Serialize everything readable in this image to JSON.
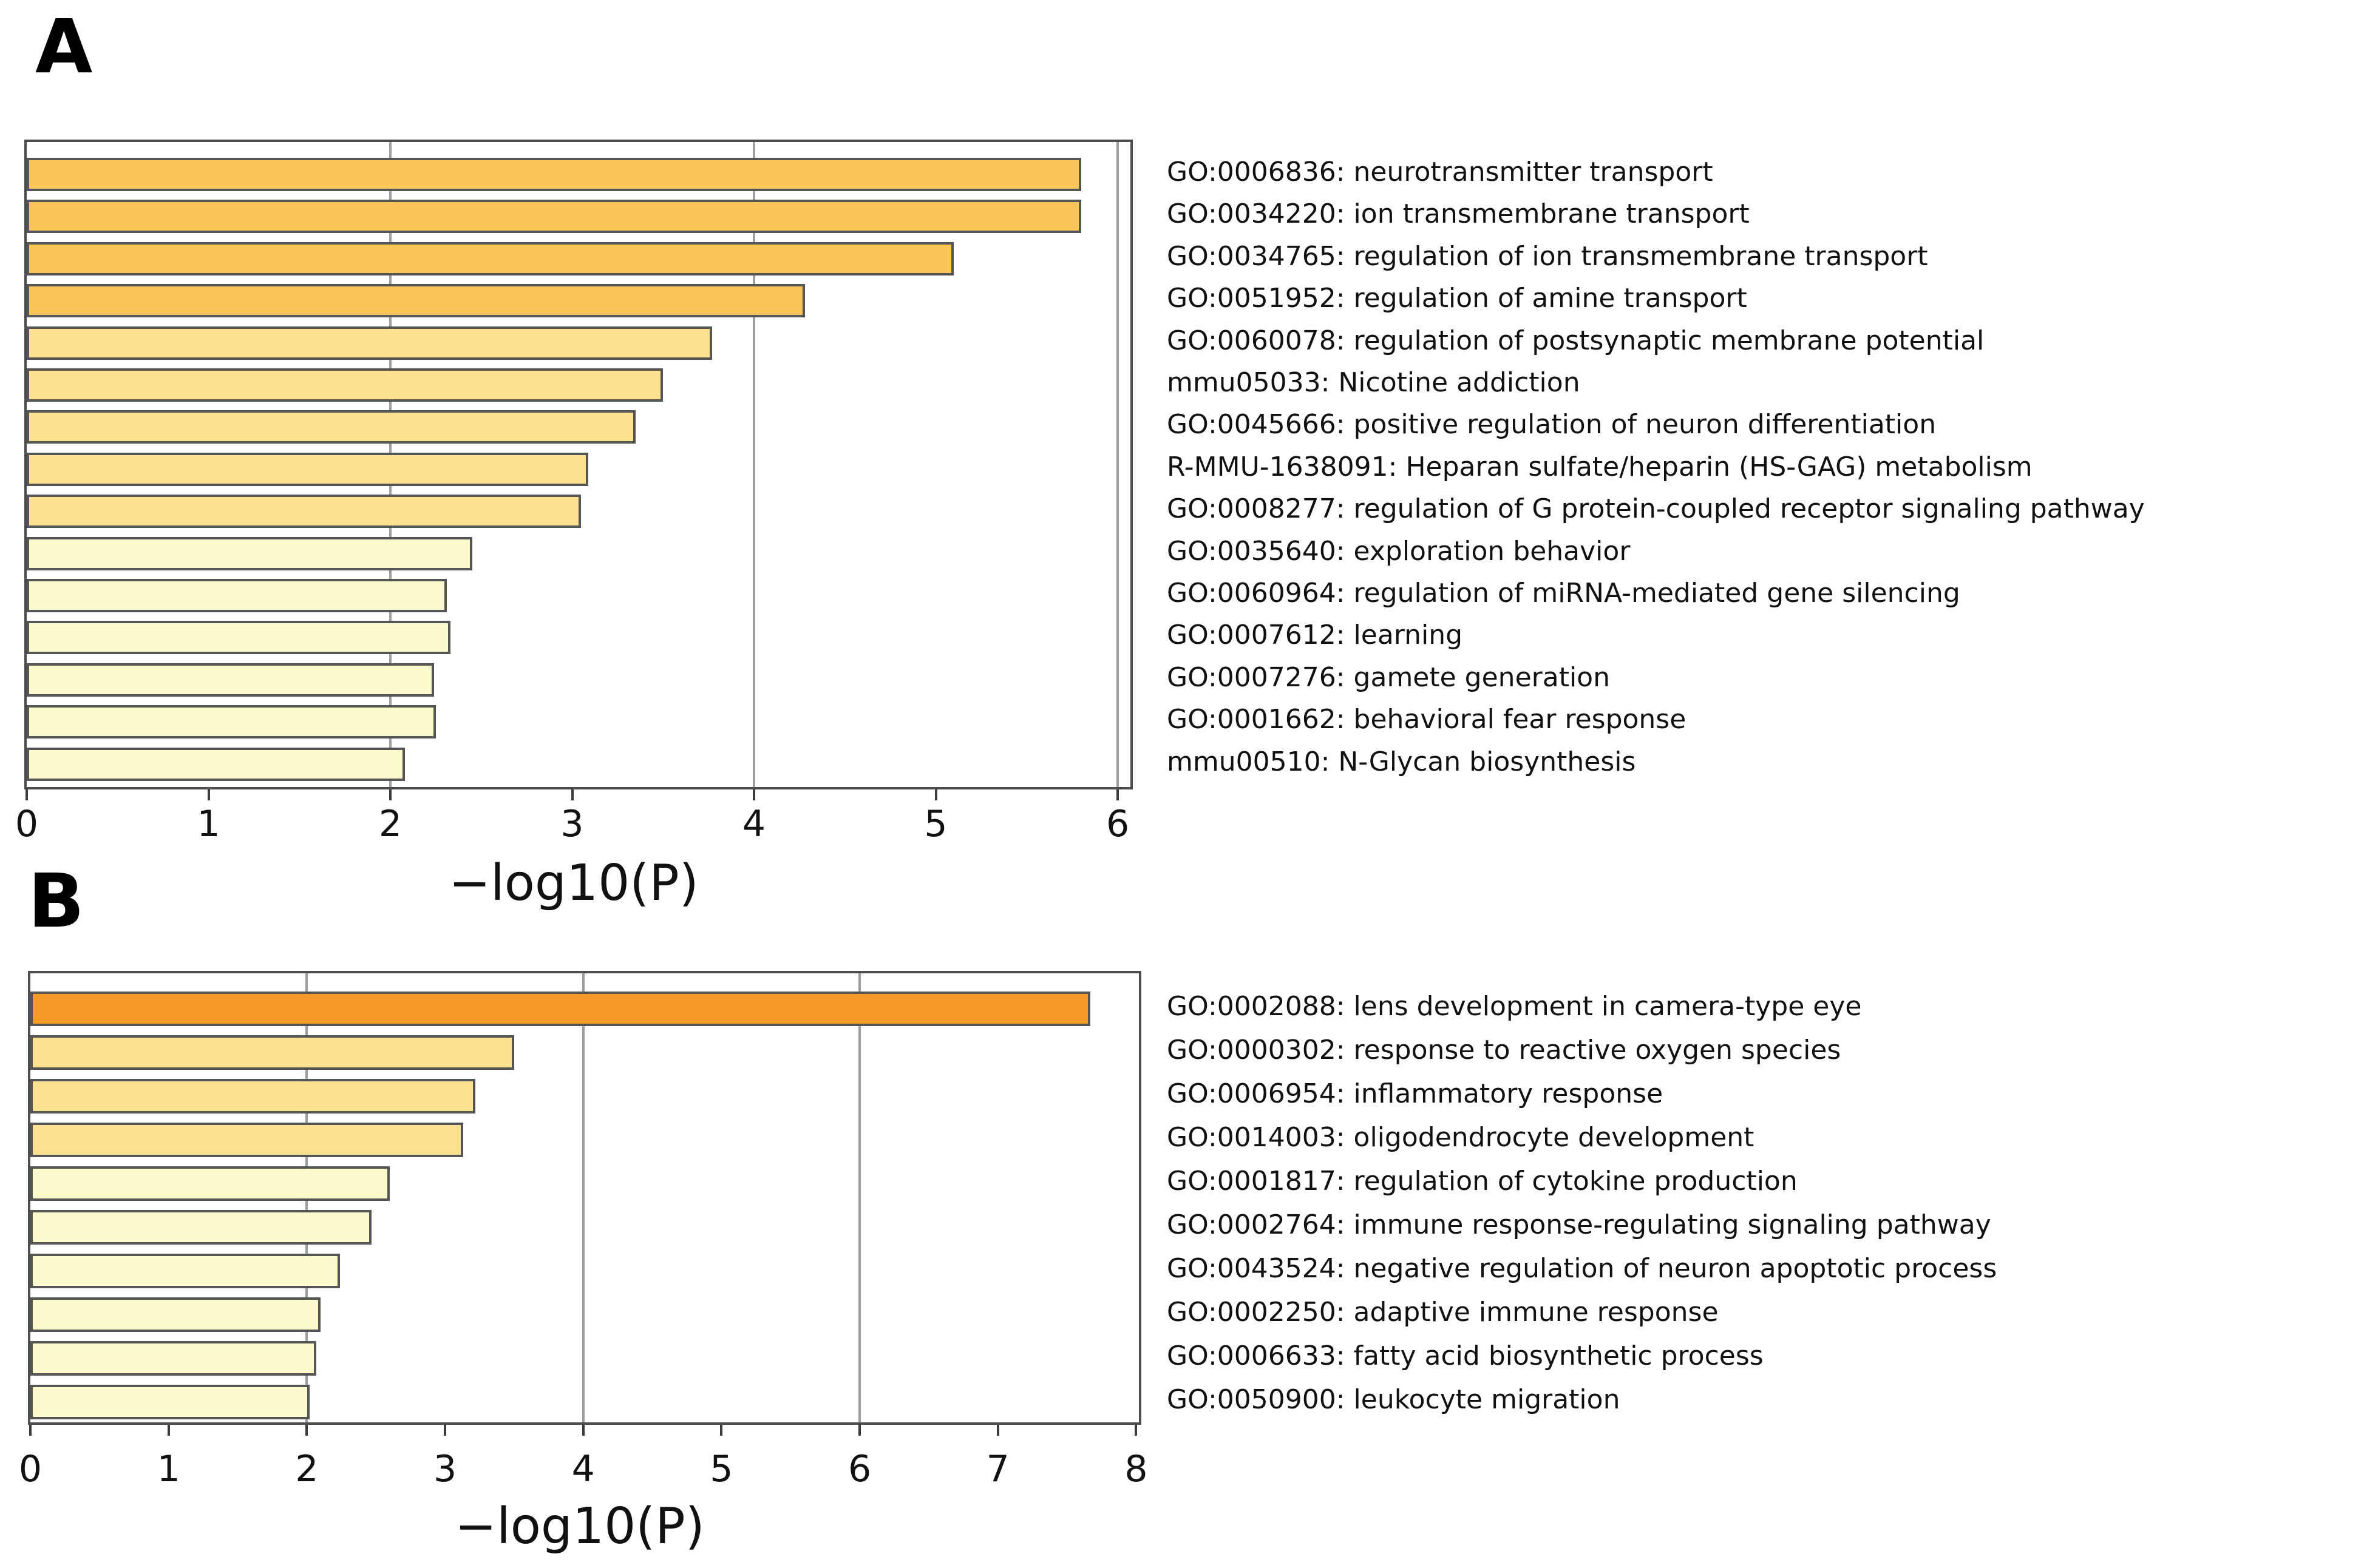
{
  "chart_data": [
    {
      "panel": "A",
      "type": "bar",
      "orientation": "horizontal",
      "title": "",
      "xlabel": "−log10(P)",
      "ylabel": "",
      "xlim": [
        0,
        6.07
      ],
      "xticks": [
        0,
        1,
        2,
        3,
        4,
        5,
        6
      ],
      "gridlines_at": [
        2,
        4,
        6
      ],
      "grid": true,
      "legend_position": "none",
      "categories": [
        "GO:0006836: neurotransmitter transport",
        "GO:0034220: ion transmembrane transport",
        "GO:0034765: regulation of ion transmembrane transport",
        "GO:0051952: regulation of amine transport",
        "GO:0060078: regulation of postsynaptic membrane potential",
        "mmu05033: Nicotine addiction",
        "GO:0045666: positive regulation of neuron differentiation",
        "R-MMU-1638091: Heparan sulfate/heparin (HS-GAG) metabolism",
        "GO:0008277: regulation of G protein-coupled receptor signaling pathway",
        "GO:0035640: exploration behavior",
        "GO:0060964: regulation of miRNA-mediated gene silencing",
        "GO:0007612: learning",
        "GO:0007276: gamete generation",
        "GO:0001662: behavioral fear response",
        "mmu00510: N-Glycan biosynthesis"
      ],
      "values": [
        5.8,
        5.8,
        5.1,
        4.28,
        3.77,
        3.5,
        3.35,
        3.09,
        3.05,
        2.45,
        2.31,
        2.33,
        2.24,
        2.25,
        2.08
      ],
      "bar_colors": [
        "#fdc45a",
        "#fdc45a",
        "#fdc45a",
        "#fdc45a",
        "#fde18f",
        "#fde18f",
        "#fde18f",
        "#fde18f",
        "#fde18f",
        "#fafacd",
        "#fafacd",
        "#fafacd",
        "#fafacd",
        "#fafacd",
        "#fafacd"
      ]
    },
    {
      "panel": "B",
      "type": "bar",
      "orientation": "horizontal",
      "title": "",
      "xlabel": "−log10(P)",
      "ylabel": "",
      "xlim": [
        0,
        8.02
      ],
      "xticks": [
        0,
        1,
        2,
        3,
        4,
        5,
        6,
        7,
        8
      ],
      "gridlines_at": [
        2,
        4,
        6
      ],
      "grid": true,
      "legend_position": "none",
      "categories": [
        "GO:0002088: lens development in camera-type eye",
        "GO:0000302: response to reactive oxygen species",
        "GO:0006954: inflammatory response",
        "GO:0014003: oligodendrocyte development",
        "GO:0001817: regulation of cytokine production",
        "GO:0002764: immune response-regulating signaling pathway",
        "GO:0043524: negative regulation of neuron apoptotic process",
        "GO:0002250: adaptive immune response",
        "GO:0006633: fatty acid biosynthetic process",
        "GO:0050900: leukocyte migration"
      ],
      "values": [
        7.67,
        3.5,
        3.22,
        3.13,
        2.6,
        2.47,
        2.24,
        2.1,
        2.07,
        2.02
      ],
      "bar_colors": [
        "#f9992b",
        "#fde18f",
        "#fde18f",
        "#fde18f",
        "#fafacd",
        "#fafacd",
        "#fafacd",
        "#fafacd",
        "#fafacd",
        "#fafacd"
      ]
    }
  ],
  "style_colors": {
    "bar_border": "#555555",
    "axis_border": "#4d4d4d",
    "gridline": "#9e9e9e",
    "background": "#ffffff",
    "text": "#111111"
  }
}
